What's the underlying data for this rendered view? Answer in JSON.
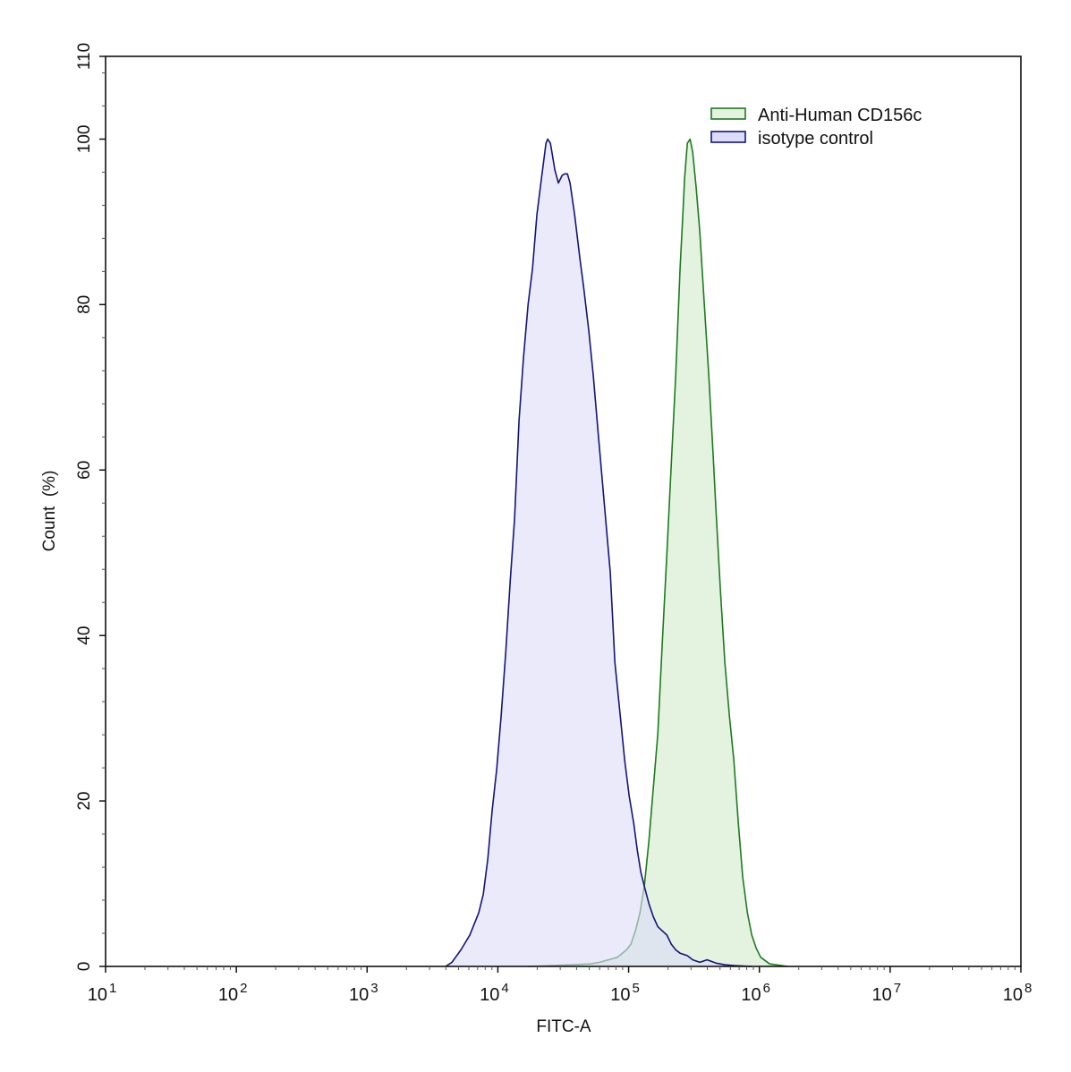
{
  "chart_data": {
    "type": "area",
    "title": "",
    "xlabel": "FITC-A",
    "ylabel": "Count  (%)",
    "x_scale": "log",
    "xlim": [
      10,
      100000000
    ],
    "ylim": [
      0,
      110
    ],
    "grid": false,
    "legend_position": "top-right",
    "x_ticks": [
      {
        "base": "10",
        "exp": "1",
        "value": 10
      },
      {
        "base": "10",
        "exp": "2",
        "value": 100
      },
      {
        "base": "10",
        "exp": "3",
        "value": 1000
      },
      {
        "base": "10",
        "exp": "4",
        "value": 10000
      },
      {
        "base": "10",
        "exp": "5",
        "value": 100000
      },
      {
        "base": "10",
        "exp": "6",
        "value": 1000000
      },
      {
        "base": "10",
        "exp": "7",
        "value": 10000000
      },
      {
        "base": "10",
        "exp": "8",
        "value": 100000000
      }
    ],
    "y_ticks": [
      "0",
      "20",
      "40",
      "60",
      "80",
      "100",
      "110"
    ],
    "series": [
      {
        "name": "Anti-Human CD156c",
        "stroke": "#1e7a1e",
        "fill": "#e3f3e0",
        "x": [
          17022,
          37410,
          51290,
          59980,
          70310,
          82220,
          96390,
          104200,
          112700,
          122200,
          131800,
          142900,
          154500,
          167100,
          180700,
          195900,
          211800,
          229100,
          247700,
          260000,
          267900,
          281200,
          295100,
          309000,
          328900,
          350700,
          379300,
          410200,
          443600,
          465600,
          503500,
          544500,
          590200,
          638300,
          690200,
          746400,
          809100,
          875000,
          946200,
          1023000,
          1199000,
          1644000
        ],
        "y": [
          0,
          0.2,
          0.3,
          0.5,
          0.8,
          1.1,
          2.0,
          2.7,
          4.3,
          6.5,
          9.7,
          15.1,
          21.6,
          28.1,
          38.9,
          49.8,
          60.6,
          71.4,
          84.4,
          90.9,
          95.2,
          99.5,
          100,
          98.4,
          94.1,
          88.7,
          80.0,
          71.4,
          61.7,
          55.2,
          45.4,
          36.8,
          30.3,
          24.9,
          17.3,
          10.8,
          6.5,
          3.8,
          2.2,
          1.1,
          0.3,
          0
        ]
      },
      {
        "name": "isotype control",
        "stroke": "#14147a",
        "fill": "#dcdcf8",
        "x": [
          3990,
          4457,
          5212,
          6109,
          7145,
          7727,
          8375,
          9057,
          9795,
          10593,
          11482,
          12417,
          13428,
          14521,
          15704,
          17022,
          18408,
          19907,
          21528,
          23335,
          24044,
          25235,
          27290,
          29040,
          30974,
          32434,
          34041,
          35645,
          38637,
          42462,
          45186,
          49659,
          53703,
          58210,
          64863,
          72444,
          78524,
          84918,
          93325,
          100925,
          109400,
          116400,
          123900,
          131800,
          142900,
          154500,
          167100,
          180700,
          195900,
          211800,
          229100,
          247700,
          281200,
          309000,
          350700,
          398100,
          465600,
          544500,
          638300,
          875000
        ],
        "y": [
          0,
          0.5,
          2.0,
          3.8,
          6.5,
          8.7,
          13.0,
          18.9,
          23.8,
          30.3,
          37.9,
          46.5,
          54.1,
          66.0,
          73.6,
          80.0,
          84.4,
          90.9,
          95.2,
          99.5,
          100,
          99.5,
          96.3,
          94.7,
          95.6,
          95.8,
          95.8,
          94.7,
          90.9,
          85.5,
          82.2,
          76.8,
          71.4,
          64.9,
          56.3,
          47.6,
          36.8,
          31.4,
          24.9,
          20.6,
          17.3,
          14.1,
          11.4,
          9.7,
          7.6,
          6.0,
          4.8,
          4.3,
          3.8,
          2.7,
          2.0,
          1.6,
          1.3,
          0.8,
          0.5,
          0.8,
          0.4,
          0.2,
          0.1,
          0
        ]
      }
    ]
  }
}
